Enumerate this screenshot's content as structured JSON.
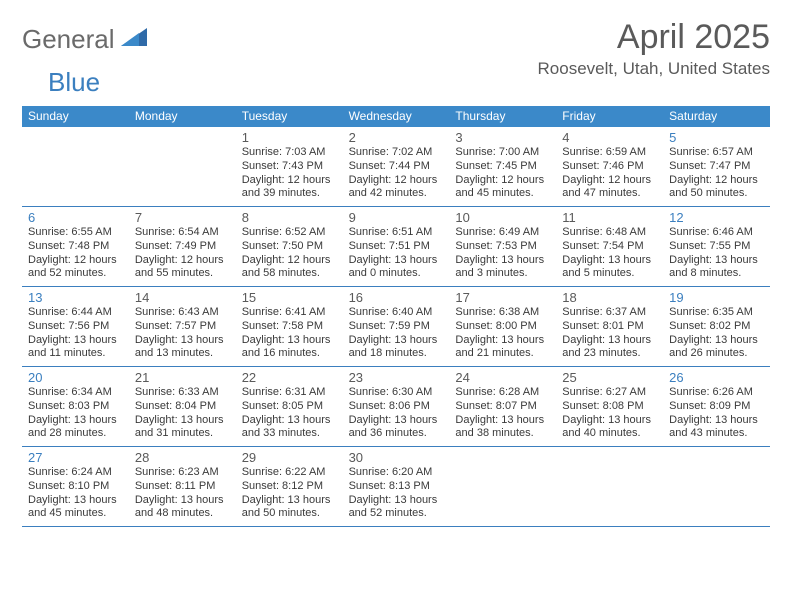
{
  "brand": {
    "part1": "General",
    "part2": "Blue"
  },
  "title": "April 2025",
  "location": "Roosevelt, Utah, United States",
  "dow": [
    "Sunday",
    "Monday",
    "Tuesday",
    "Wednesday",
    "Thursday",
    "Friday",
    "Saturday"
  ],
  "colors": {
    "header_bg": "#3b89c9",
    "accent": "#3b7fbf",
    "text": "#3a3a3a",
    "muted": "#5a5a5a"
  },
  "weeks": [
    [
      {
        "empty": true
      },
      {
        "empty": true
      },
      {
        "n": "1",
        "sunrise": "Sunrise: 7:03 AM",
        "sunset": "Sunset: 7:43 PM",
        "day1": "Daylight: 12 hours",
        "day2": "and 39 minutes."
      },
      {
        "n": "2",
        "sunrise": "Sunrise: 7:02 AM",
        "sunset": "Sunset: 7:44 PM",
        "day1": "Daylight: 12 hours",
        "day2": "and 42 minutes."
      },
      {
        "n": "3",
        "sunrise": "Sunrise: 7:00 AM",
        "sunset": "Sunset: 7:45 PM",
        "day1": "Daylight: 12 hours",
        "day2": "and 45 minutes."
      },
      {
        "n": "4",
        "sunrise": "Sunrise: 6:59 AM",
        "sunset": "Sunset: 7:46 PM",
        "day1": "Daylight: 12 hours",
        "day2": "and 47 minutes."
      },
      {
        "n": "5",
        "sunrise": "Sunrise: 6:57 AM",
        "sunset": "Sunset: 7:47 PM",
        "day1": "Daylight: 12 hours",
        "day2": "and 50 minutes.",
        "weekend": true
      }
    ],
    [
      {
        "n": "6",
        "sunrise": "Sunrise: 6:55 AM",
        "sunset": "Sunset: 7:48 PM",
        "day1": "Daylight: 12 hours",
        "day2": "and 52 minutes.",
        "weekend": true
      },
      {
        "n": "7",
        "sunrise": "Sunrise: 6:54 AM",
        "sunset": "Sunset: 7:49 PM",
        "day1": "Daylight: 12 hours",
        "day2": "and 55 minutes."
      },
      {
        "n": "8",
        "sunrise": "Sunrise: 6:52 AM",
        "sunset": "Sunset: 7:50 PM",
        "day1": "Daylight: 12 hours",
        "day2": "and 58 minutes."
      },
      {
        "n": "9",
        "sunrise": "Sunrise: 6:51 AM",
        "sunset": "Sunset: 7:51 PM",
        "day1": "Daylight: 13 hours",
        "day2": "and 0 minutes."
      },
      {
        "n": "10",
        "sunrise": "Sunrise: 6:49 AM",
        "sunset": "Sunset: 7:53 PM",
        "day1": "Daylight: 13 hours",
        "day2": "and 3 minutes."
      },
      {
        "n": "11",
        "sunrise": "Sunrise: 6:48 AM",
        "sunset": "Sunset: 7:54 PM",
        "day1": "Daylight: 13 hours",
        "day2": "and 5 minutes."
      },
      {
        "n": "12",
        "sunrise": "Sunrise: 6:46 AM",
        "sunset": "Sunset: 7:55 PM",
        "day1": "Daylight: 13 hours",
        "day2": "and 8 minutes.",
        "weekend": true
      }
    ],
    [
      {
        "n": "13",
        "sunrise": "Sunrise: 6:44 AM",
        "sunset": "Sunset: 7:56 PM",
        "day1": "Daylight: 13 hours",
        "day2": "and 11 minutes.",
        "weekend": true
      },
      {
        "n": "14",
        "sunrise": "Sunrise: 6:43 AM",
        "sunset": "Sunset: 7:57 PM",
        "day1": "Daylight: 13 hours",
        "day2": "and 13 minutes."
      },
      {
        "n": "15",
        "sunrise": "Sunrise: 6:41 AM",
        "sunset": "Sunset: 7:58 PM",
        "day1": "Daylight: 13 hours",
        "day2": "and 16 minutes."
      },
      {
        "n": "16",
        "sunrise": "Sunrise: 6:40 AM",
        "sunset": "Sunset: 7:59 PM",
        "day1": "Daylight: 13 hours",
        "day2": "and 18 minutes."
      },
      {
        "n": "17",
        "sunrise": "Sunrise: 6:38 AM",
        "sunset": "Sunset: 8:00 PM",
        "day1": "Daylight: 13 hours",
        "day2": "and 21 minutes."
      },
      {
        "n": "18",
        "sunrise": "Sunrise: 6:37 AM",
        "sunset": "Sunset: 8:01 PM",
        "day1": "Daylight: 13 hours",
        "day2": "and 23 minutes."
      },
      {
        "n": "19",
        "sunrise": "Sunrise: 6:35 AM",
        "sunset": "Sunset: 8:02 PM",
        "day1": "Daylight: 13 hours",
        "day2": "and 26 minutes.",
        "weekend": true
      }
    ],
    [
      {
        "n": "20",
        "sunrise": "Sunrise: 6:34 AM",
        "sunset": "Sunset: 8:03 PM",
        "day1": "Daylight: 13 hours",
        "day2": "and 28 minutes.",
        "weekend": true
      },
      {
        "n": "21",
        "sunrise": "Sunrise: 6:33 AM",
        "sunset": "Sunset: 8:04 PM",
        "day1": "Daylight: 13 hours",
        "day2": "and 31 minutes."
      },
      {
        "n": "22",
        "sunrise": "Sunrise: 6:31 AM",
        "sunset": "Sunset: 8:05 PM",
        "day1": "Daylight: 13 hours",
        "day2": "and 33 minutes."
      },
      {
        "n": "23",
        "sunrise": "Sunrise: 6:30 AM",
        "sunset": "Sunset: 8:06 PM",
        "day1": "Daylight: 13 hours",
        "day2": "and 36 minutes."
      },
      {
        "n": "24",
        "sunrise": "Sunrise: 6:28 AM",
        "sunset": "Sunset: 8:07 PM",
        "day1": "Daylight: 13 hours",
        "day2": "and 38 minutes."
      },
      {
        "n": "25",
        "sunrise": "Sunrise: 6:27 AM",
        "sunset": "Sunset: 8:08 PM",
        "day1": "Daylight: 13 hours",
        "day2": "and 40 minutes."
      },
      {
        "n": "26",
        "sunrise": "Sunrise: 6:26 AM",
        "sunset": "Sunset: 8:09 PM",
        "day1": "Daylight: 13 hours",
        "day2": "and 43 minutes.",
        "weekend": true
      }
    ],
    [
      {
        "n": "27",
        "sunrise": "Sunrise: 6:24 AM",
        "sunset": "Sunset: 8:10 PM",
        "day1": "Daylight: 13 hours",
        "day2": "and 45 minutes.",
        "weekend": true
      },
      {
        "n": "28",
        "sunrise": "Sunrise: 6:23 AM",
        "sunset": "Sunset: 8:11 PM",
        "day1": "Daylight: 13 hours",
        "day2": "and 48 minutes."
      },
      {
        "n": "29",
        "sunrise": "Sunrise: 6:22 AM",
        "sunset": "Sunset: 8:12 PM",
        "day1": "Daylight: 13 hours",
        "day2": "and 50 minutes."
      },
      {
        "n": "30",
        "sunrise": "Sunrise: 6:20 AM",
        "sunset": "Sunset: 8:13 PM",
        "day1": "Daylight: 13 hours",
        "day2": "and 52 minutes."
      },
      {
        "empty": true
      },
      {
        "empty": true
      },
      {
        "empty": true
      }
    ]
  ]
}
